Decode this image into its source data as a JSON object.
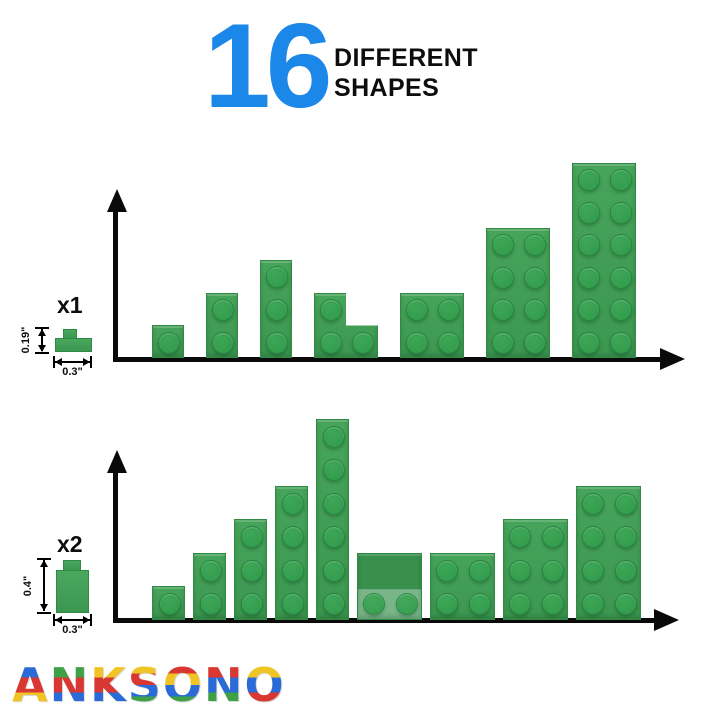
{
  "title": {
    "number": "16",
    "line1": "DIFFERENT",
    "line2": "SHAPES"
  },
  "colors": {
    "accent_blue": "#1B87E8",
    "brick_green": "#3D9B52",
    "stud_green": "#35A04E",
    "brick_border": "#2E8A44",
    "axis_black": "#0A0A0A"
  },
  "charts": [
    {
      "id": "plates-row",
      "multiplier": "x1",
      "dims": {
        "height": "0.19\"",
        "width": "0.3\""
      },
      "shapes": [
        {
          "label": "1x1",
          "cols": 1,
          "rows": 1,
          "kind": "plain"
        },
        {
          "label": "1x2",
          "cols": 1,
          "rows": 2,
          "kind": "plain"
        },
        {
          "label": "1x3",
          "cols": 1,
          "rows": 3,
          "kind": "plain"
        },
        {
          "label": "corner-2x2",
          "cols": 2,
          "rows": 2,
          "kind": "corner"
        },
        {
          "label": "2x2",
          "cols": 2,
          "rows": 2,
          "kind": "plain"
        },
        {
          "label": "2x4",
          "cols": 2,
          "rows": 4,
          "kind": "plain"
        },
        {
          "label": "2x6",
          "cols": 2,
          "rows": 6,
          "kind": "plain"
        }
      ]
    },
    {
      "id": "bricks-row",
      "multiplier": "x2",
      "dims": {
        "height": "0.4\"",
        "width": "0.3\""
      },
      "shapes": [
        {
          "label": "1x1",
          "cols": 1,
          "rows": 1,
          "kind": "plain"
        },
        {
          "label": "1x2",
          "cols": 1,
          "rows": 2,
          "kind": "plain"
        },
        {
          "label": "1x3",
          "cols": 1,
          "rows": 3,
          "kind": "plain"
        },
        {
          "label": "1x4",
          "cols": 1,
          "rows": 4,
          "kind": "plain"
        },
        {
          "label": "1x6",
          "cols": 1,
          "rows": 6,
          "kind": "plain"
        },
        {
          "label": "slope-2x2",
          "cols": 2,
          "rows": 2,
          "kind": "slope"
        },
        {
          "label": "2x2",
          "cols": 2,
          "rows": 2,
          "kind": "plain"
        },
        {
          "label": "2x3",
          "cols": 2,
          "rows": 3,
          "kind": "plain"
        },
        {
          "label": "2x4",
          "cols": 2,
          "rows": 4,
          "kind": "plain"
        }
      ]
    }
  ],
  "brand": {
    "name": "ANKSONO",
    "letters": [
      {
        "ch": "A",
        "colors": [
          "#2A6BD8",
          "#D93832",
          "#F1C425"
        ]
      },
      {
        "ch": "N",
        "colors": [
          "#3FA046",
          "#D93832",
          "#2A6BD8"
        ]
      },
      {
        "ch": "K",
        "colors": [
          "#F1C425",
          "#D93832",
          "#2A6BD8"
        ]
      },
      {
        "ch": "S",
        "colors": [
          "#F1C425",
          "#D93832",
          "#2A6BD8",
          "#3FA046"
        ]
      },
      {
        "ch": "O",
        "colors": [
          "#D93832",
          "#F1C425",
          "#2A6BD8",
          "#3FA046"
        ]
      },
      {
        "ch": "N",
        "colors": [
          "#D93832",
          "#2A6BD8",
          "#3FA046"
        ]
      },
      {
        "ch": "O",
        "colors": [
          "#F1C425",
          "#2A6BD8",
          "#D93832"
        ]
      }
    ]
  }
}
